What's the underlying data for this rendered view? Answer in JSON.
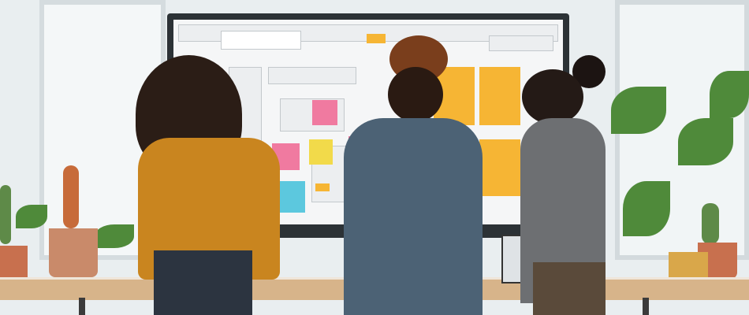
{
  "scene": {
    "description_colors": {
      "wall": "#e9eef0",
      "screen_frame": "#2c3236",
      "screen_canvas": "#f5f6f7",
      "sticky_orange": "#f6b534",
      "sticky_pink": "#f07aa0",
      "sticky_yellow": "#f2da4a",
      "sticky_cyan": "#5cc8de",
      "desk": "#d7b48a",
      "mustard_shirt": "#c9851f",
      "denim_jacket": "#4c6275",
      "grey_cardigan": "#6d6f72",
      "plant_green": "#4f8a3a",
      "terracotta": "#c8704e"
    },
    "people_count": 3
  }
}
